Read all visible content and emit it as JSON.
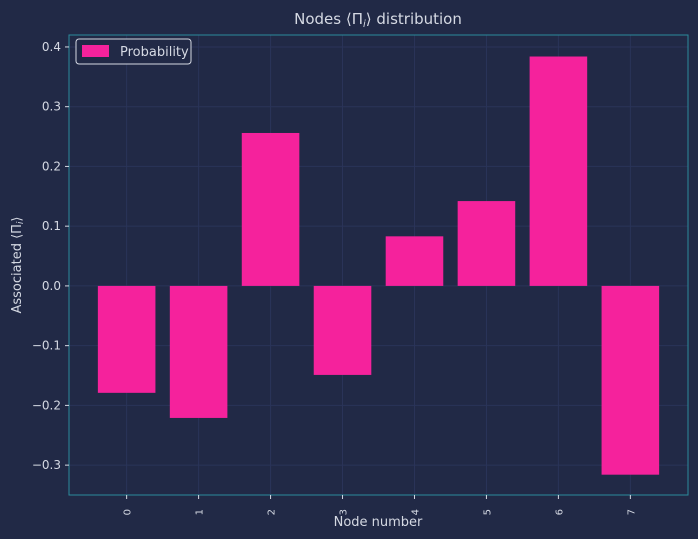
{
  "chart_data": {
    "type": "bar",
    "title": "Nodes ⟨Π",
    "title_sub": "i",
    "title_tail": "⟩ distribution",
    "xlabel": "Node number",
    "ylabel": "Associated ⟨Π",
    "ylabel_sub": "i",
    "ylabel_tail": "⟩",
    "categories": [
      "0",
      "1",
      "2",
      "3",
      "4",
      "5",
      "6",
      "7"
    ],
    "series": [
      {
        "name": "Probability",
        "values": [
          -0.179,
          -0.221,
          0.256,
          -0.149,
          0.083,
          0.142,
          0.384,
          -0.316
        ]
      }
    ],
    "ylim": [
      -0.35,
      0.42
    ],
    "yticks": [
      {
        "value": 0.4,
        "label": "0.4"
      },
      {
        "value": 0.3,
        "label": "0.3"
      },
      {
        "value": 0.2,
        "label": "0.2"
      },
      {
        "value": 0.1,
        "label": "0.1"
      },
      {
        "value": 0.0,
        "label": "0.0"
      },
      {
        "value": -0.1,
        "label": "−0.1"
      },
      {
        "value": -0.2,
        "label": "−0.2"
      },
      {
        "value": -0.3,
        "label": "−0.3"
      }
    ],
    "grid": true,
    "legend_position": "top-left",
    "colors": {
      "background": "#212946",
      "bar": "#F5229C",
      "spine": "#2A8C9C",
      "grid": "#2A3459",
      "text": "#D5D9E3"
    }
  }
}
